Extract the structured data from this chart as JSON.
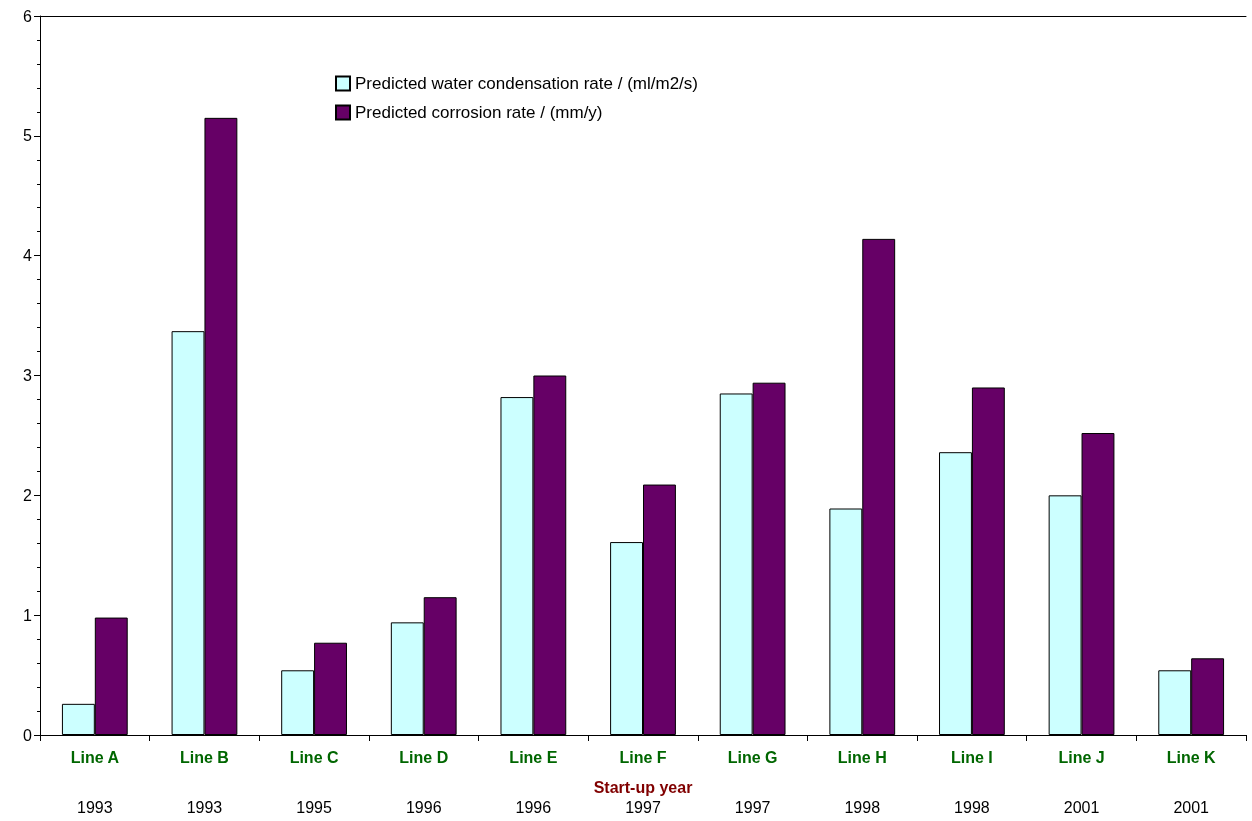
{
  "chart_data": {
    "type": "bar",
    "xlabel": "Start-up year",
    "categories": [
      "Line A",
      "Line B",
      "Line C",
      "Line D",
      "Line E",
      "Line F",
      "Line G",
      "Line H",
      "Line I",
      "Line J",
      "Line K"
    ],
    "series": [
      {
        "name": "Predicted water condensation rate / (ml/m2/s)",
        "color": "#ccffff",
        "values": [
          0.26,
          3.37,
          0.54,
          0.94,
          2.82,
          1.61,
          2.85,
          1.89,
          2.36,
          2.0,
          0.54
        ]
      },
      {
        "name": "Predicted corrosion rate / (mm/y)",
        "color": "#660066",
        "values": [
          0.98,
          5.15,
          0.77,
          1.15,
          3.0,
          2.09,
          2.94,
          4.14,
          2.9,
          2.52,
          0.64
        ]
      }
    ],
    "annotations": [
      "1993",
      "1993",
      "1995",
      "1996",
      "1996",
      "1997",
      "1997",
      "1998",
      "1998",
      "2001",
      "2001"
    ],
    "ylim": [
      0,
      6
    ],
    "yticks": [
      0,
      1,
      2,
      3,
      4,
      5,
      6
    ],
    "grid": false,
    "legend": "top"
  }
}
